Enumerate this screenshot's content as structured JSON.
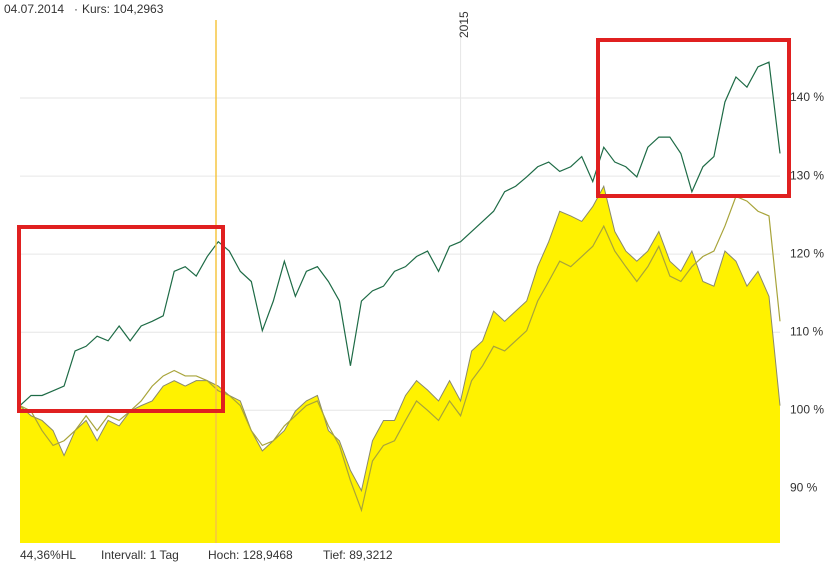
{
  "chart_data": {
    "type": "line",
    "header": [
      "04.07.2014",
      "Kurs: 104,2963"
    ],
    "footer": [
      "44,36%HL",
      "Intervall: 1 Tag",
      "Hoch: 128,9468",
      "Tief: 89,3212"
    ],
    "categories": [
      null,
      null,
      null,
      null,
      null,
      null,
      null,
      null,
      null,
      null,
      null,
      null,
      null,
      null,
      null,
      null,
      null,
      null,
      null,
      null,
      null,
      null,
      null,
      null,
      null,
      null,
      null,
      null,
      null,
      null,
      null,
      null,
      null,
      null,
      null,
      null,
      null,
      null,
      null,
      null,
      null,
      null,
      null,
      null,
      null,
      null,
      null,
      null,
      null,
      null,
      null,
      null,
      null,
      null,
      null,
      null,
      null,
      null,
      null,
      null,
      null,
      null,
      null,
      null,
      null,
      null,
      null,
      null,
      null,
      null
    ],
    "xticks": [
      {
        "value": 40,
        "label": "2015"
      }
    ],
    "ylim": [
      83,
      150
    ],
    "yticks": [
      {
        "value": 90,
        "label": "90 %"
      },
      {
        "value": 100,
        "label": "100 %"
      },
      {
        "value": 110,
        "label": "110 %"
      },
      {
        "value": 120,
        "label": "120 %"
      },
      {
        "value": 130,
        "label": "130 %"
      },
      {
        "value": 140,
        "label": "140 %"
      }
    ],
    "grid": true,
    "series": [
      {
        "type": "area",
        "color": "#fff200",
        "stroke": "#8a8a6a",
        "values": [
          100.6,
          99.3,
          98.7,
          97.4,
          94.2,
          97.4,
          98.7,
          96.1,
          98.7,
          98,
          99.9,
          100.6,
          101.2,
          103.1,
          103.8,
          103.1,
          103.8,
          103.8,
          103.1,
          101.9,
          101.2,
          97.4,
          94.8,
          96.1,
          97.4,
          99.9,
          101.2,
          101.9,
          97.4,
          96.1,
          92.3,
          89.7,
          96.1,
          98.7,
          98.7,
          101.9,
          103.8,
          102.6,
          101.2,
          103.8,
          101.2,
          107.6,
          108.9,
          112.7,
          111.4,
          112.7,
          114,
          118.4,
          121.6,
          125.5,
          124.9,
          124.2,
          126.1,
          128.7,
          122.9,
          120.4,
          119.1,
          120.4,
          122.9,
          119.1,
          117.8,
          120.4,
          116.5,
          115.9,
          120.4,
          119.1,
          115.9,
          117.8,
          114.6,
          100.6
        ]
      },
      {
        "type": "line",
        "color": "#a8a43a",
        "values": [
          100.6,
          99.9,
          97.4,
          95.5,
          96.1,
          97.4,
          99.3,
          97.4,
          99.3,
          98.7,
          99.9,
          101.2,
          103.1,
          104.4,
          105.1,
          104.4,
          104.4,
          103.8,
          102.5,
          101.9,
          100.6,
          97.4,
          95.5,
          96.1,
          98.0,
          99.3,
          100.6,
          101.2,
          98.0,
          95.5,
          91.0,
          87.2,
          93.5,
          95.5,
          96.1,
          98.7,
          101.2,
          100.0,
          98.7,
          101.2,
          99.3,
          103.8,
          105.7,
          108.2,
          107.6,
          108.9,
          110.2,
          114.0,
          116.5,
          119.1,
          118.4,
          119.7,
          121.0,
          123.6,
          120.4,
          118.4,
          116.5,
          118.4,
          121.0,
          117.2,
          116.5,
          118.4,
          119.7,
          120.4,
          123.6,
          127.4,
          126.8,
          125.5,
          124.9,
          111.4
        ]
      },
      {
        "type": "line",
        "color": "#1e6b46",
        "values": [
          100.6,
          101.9,
          101.9,
          102.5,
          103.1,
          107.6,
          108.2,
          109.5,
          108.9,
          110.8,
          108.9,
          110.8,
          111.4,
          112.1,
          117.8,
          118.4,
          117.2,
          119.7,
          121.6,
          120.4,
          117.8,
          116.5,
          110.2,
          114,
          119.1,
          114.6,
          117.8,
          118.4,
          116.5,
          114,
          105.7,
          114,
          115.3,
          115.9,
          117.8,
          118.4,
          119.7,
          120.4,
          117.8,
          121,
          121.6,
          122.9,
          124.2,
          125.5,
          128,
          128.7,
          129.9,
          131.2,
          131.8,
          130.6,
          131.2,
          132.5,
          129.3,
          133.7,
          131.8,
          131.2,
          129.9,
          133.7,
          135,
          135,
          132.9,
          128,
          131.2,
          132.5,
          139.5,
          142.7,
          141.4,
          144,
          144.6,
          132.9
        ]
      }
    ]
  }
}
